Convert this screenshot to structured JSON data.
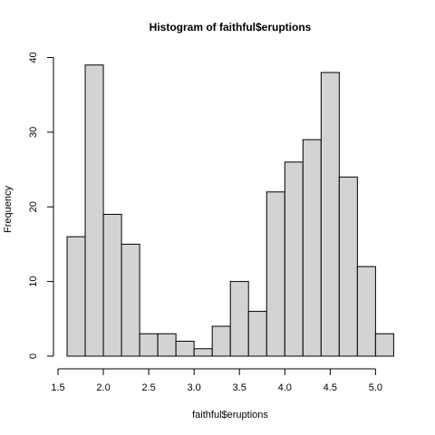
{
  "chart_data": {
    "type": "bar",
    "title": "Histogram of faithful$eruptions",
    "xlabel": "faithful$eruptions",
    "ylabel": "Frequency",
    "bin_edges": [
      1.6,
      1.8,
      2.0,
      2.2,
      2.4,
      2.6,
      2.8,
      3.0,
      3.2,
      3.4,
      3.6,
      3.8,
      4.0,
      4.2,
      4.4,
      4.6,
      4.8,
      5.0,
      5.2
    ],
    "values": [
      16,
      39,
      19,
      15,
      3,
      3,
      2,
      1,
      4,
      10,
      6,
      22,
      26,
      29,
      38,
      24,
      12,
      3
    ],
    "xticks": [
      1.5,
      2.0,
      2.5,
      3.0,
      3.5,
      4.0,
      4.5,
      5.0
    ],
    "xtick_labels": [
      "1.5",
      "2.0",
      "2.5",
      "3.0",
      "3.5",
      "4.0",
      "4.5",
      "5.0"
    ],
    "yticks": [
      0,
      10,
      20,
      30,
      40
    ],
    "ytick_labels": [
      "0",
      "10",
      "20",
      "30",
      "40"
    ],
    "xlim": [
      1.5,
      5.2
    ],
    "ylim": [
      0,
      40
    ],
    "bar_color": "#d3d3d3",
    "grid": false
  }
}
